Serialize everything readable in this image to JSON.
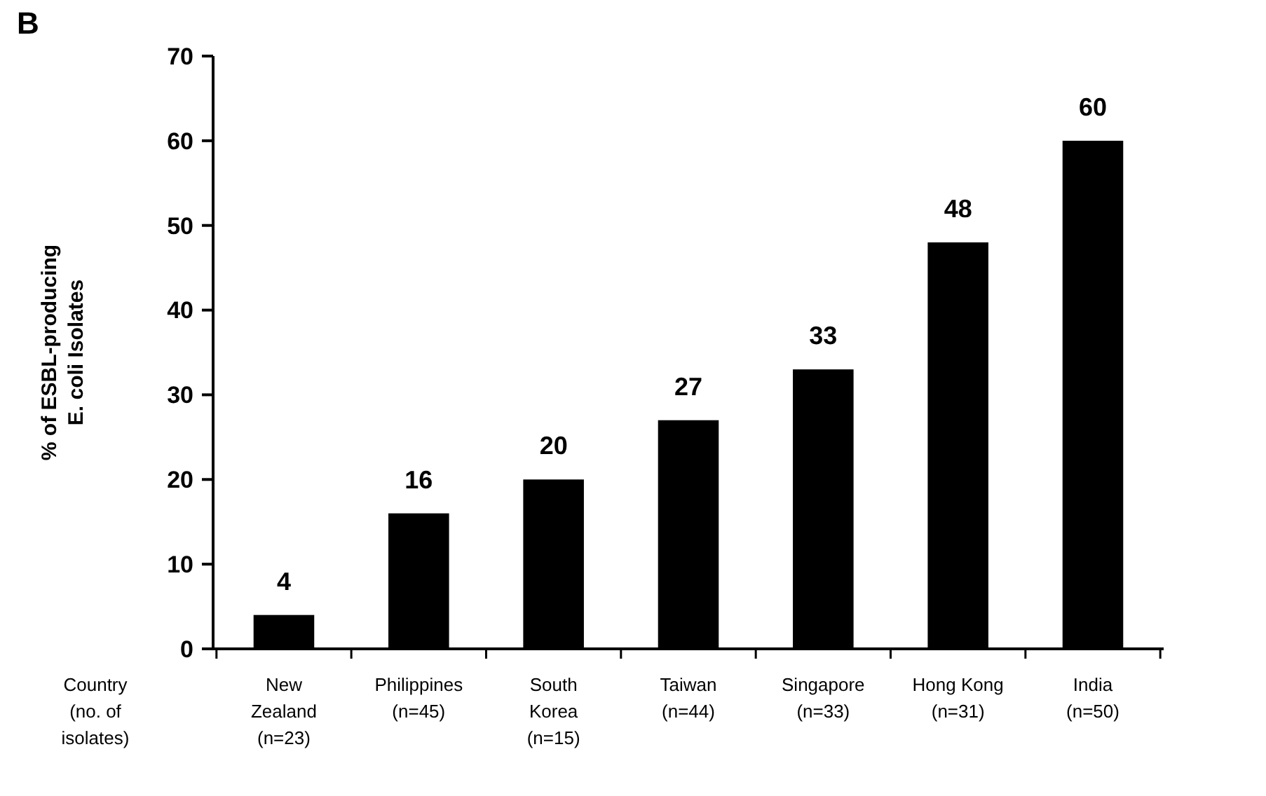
{
  "chart_data": {
    "type": "bar",
    "categories": [
      "New\nZealand\n(n=23)",
      "Philippines\n(n=45)",
      "South\nKorea\n(n=15)",
      "Taiwan\n(n=44)",
      "Singapore\n(n=33)",
      "Hong Kong\n(n=31)",
      "India\n(n=50)"
    ],
    "values": [
      4,
      16,
      20,
      27,
      33,
      48,
      60
    ],
    "color": "#000000",
    "ylim": [
      0,
      70
    ],
    "yticks": [
      0,
      10,
      20,
      30,
      40,
      50,
      60,
      70
    ],
    "ylabel": "% of ESBL-producing\nE. coli Isolates",
    "xlabel": "Country\n(no. of\nisolates)",
    "data_labels": true,
    "annotations": [
      "B"
    ]
  }
}
